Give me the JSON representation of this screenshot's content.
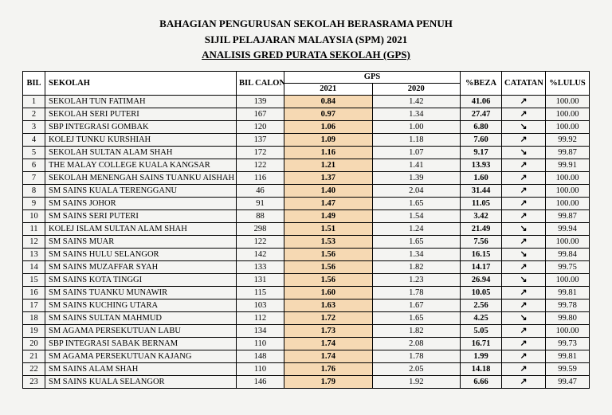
{
  "header": {
    "line1": "BAHAGIAN PENGURUSAN SEKOLAH BERASRAMA PENUH",
    "line2": "SIJIL PELAJARAN MALAYSIA (SPM) 2021",
    "line3": "ANALISIS GRED PURATA SEKOLAH (GPS)"
  },
  "columns": {
    "bil": "BIL",
    "sekolah": "SEKOLAH",
    "bil_calon": "BIL CALON",
    "gps": "GPS",
    "gps_2021": "2021",
    "gps_2020": "2020",
    "beza": "%BEZA",
    "catatan": "CATATAN",
    "lulus": "%LULUS"
  },
  "style": {
    "highlight_bg": "#f6d9b3",
    "border_color": "#000000",
    "page_bg": "#f4f4f2",
    "font_family": "Times New Roman",
    "header_fontsize_pt": 13,
    "body_fontsize_pt": 10.5
  },
  "rows": [
    {
      "bil": "1",
      "sekolah": "SEKOLAH TUN FATIMAH",
      "calon": "139",
      "g21": "0.84",
      "g20": "1.42",
      "beza": "41.06",
      "cat": "↗",
      "lulus": "100.00"
    },
    {
      "bil": "2",
      "sekolah": "SEKOLAH SERI PUTERI",
      "calon": "167",
      "g21": "0.97",
      "g20": "1.34",
      "beza": "27.47",
      "cat": "↗",
      "lulus": "100.00"
    },
    {
      "bil": "3",
      "sekolah": "SBP INTEGRASI GOMBAK",
      "calon": "120",
      "g21": "1.06",
      "g20": "1.00",
      "beza": "6.80",
      "cat": "↘",
      "lulus": "100.00"
    },
    {
      "bil": "4",
      "sekolah": "KOLEJ TUNKU KURSHIAH",
      "calon": "137",
      "g21": "1.09",
      "g20": "1.18",
      "beza": "7.60",
      "cat": "↗",
      "lulus": "99.92"
    },
    {
      "bil": "5",
      "sekolah": "SEKOLAH SULTAN ALAM SHAH",
      "calon": "172",
      "g21": "1.16",
      "g20": "1.07",
      "beza": "9.17",
      "cat": "↘",
      "lulus": "99.87"
    },
    {
      "bil": "6",
      "sekolah": "THE MALAY COLLEGE KUALA KANGSAR",
      "calon": "122",
      "g21": "1.21",
      "g20": "1.41",
      "beza": "13.93",
      "cat": "↗",
      "lulus": "99.91"
    },
    {
      "bil": "7",
      "sekolah": "SEKOLAH MENENGAH SAINS TUANKU AISHAH ROI",
      "calon": "116",
      "g21": "1.37",
      "g20": "1.39",
      "beza": "1.60",
      "cat": "↗",
      "lulus": "100.00"
    },
    {
      "bil": "8",
      "sekolah": "SM SAINS KUALA TERENGGANU",
      "calon": "46",
      "g21": "1.40",
      "g20": "2.04",
      "beza": "31.44",
      "cat": "↗",
      "lulus": "100.00"
    },
    {
      "bil": "9",
      "sekolah": "SM SAINS JOHOR",
      "calon": "91",
      "g21": "1.47",
      "g20": "1.65",
      "beza": "11.05",
      "cat": "↗",
      "lulus": "100.00"
    },
    {
      "bil": "10",
      "sekolah": "SM SAINS SERI PUTERI",
      "calon": "88",
      "g21": "1.49",
      "g20": "1.54",
      "beza": "3.42",
      "cat": "↗",
      "lulus": "99.87"
    },
    {
      "bil": "11",
      "sekolah": "KOLEJ ISLAM SULTAN ALAM SHAH",
      "calon": "298",
      "g21": "1.51",
      "g20": "1.24",
      "beza": "21.49",
      "cat": "↘",
      "lulus": "99.94"
    },
    {
      "bil": "12",
      "sekolah": "SM SAINS MUAR",
      "calon": "122",
      "g21": "1.53",
      "g20": "1.65",
      "beza": "7.56",
      "cat": "↗",
      "lulus": "100.00"
    },
    {
      "bil": "13",
      "sekolah": "SM SAINS HULU SELANGOR",
      "calon": "142",
      "g21": "1.56",
      "g20": "1.34",
      "beza": "16.15",
      "cat": "↘",
      "lulus": "99.84"
    },
    {
      "bil": "14",
      "sekolah": "SM SAINS MUZAFFAR SYAH",
      "calon": "133",
      "g21": "1.56",
      "g20": "1.82",
      "beza": "14.17",
      "cat": "↗",
      "lulus": "99.75"
    },
    {
      "bil": "15",
      "sekolah": "SM SAINS KOTA TINGGI",
      "calon": "131",
      "g21": "1.56",
      "g20": "1.23",
      "beza": "26.94",
      "cat": "↘",
      "lulus": "100.00"
    },
    {
      "bil": "16",
      "sekolah": "SM SAINS TUANKU MUNAWIR",
      "calon": "115",
      "g21": "1.60",
      "g20": "1.78",
      "beza": "10.05",
      "cat": "↗",
      "lulus": "99.81"
    },
    {
      "bil": "17",
      "sekolah": "SM SAINS KUCHING UTARA",
      "calon": "103",
      "g21": "1.63",
      "g20": "1.67",
      "beza": "2.56",
      "cat": "↗",
      "lulus": "99.78"
    },
    {
      "bil": "18",
      "sekolah": "SM SAINS SULTAN MAHMUD",
      "calon": "112",
      "g21": "1.72",
      "g20": "1.65",
      "beza": "4.25",
      "cat": "↘",
      "lulus": "99.80"
    },
    {
      "bil": "19",
      "sekolah": "SM AGAMA PERSEKUTUAN LABU",
      "calon": "134",
      "g21": "1.73",
      "g20": "1.82",
      "beza": "5.05",
      "cat": "↗",
      "lulus": "100.00"
    },
    {
      "bil": "20",
      "sekolah": "SBP INTEGRASI SABAK BERNAM",
      "calon": "110",
      "g21": "1.74",
      "g20": "2.08",
      "beza": "16.71",
      "cat": "↗",
      "lulus": "99.73"
    },
    {
      "bil": "21",
      "sekolah": "SM AGAMA PERSEKUTUAN KAJANG",
      "calon": "148",
      "g21": "1.74",
      "g20": "1.78",
      "beza": "1.99",
      "cat": "↗",
      "lulus": "99.81"
    },
    {
      "bil": "22",
      "sekolah": "SM SAINS ALAM SHAH",
      "calon": "110",
      "g21": "1.76",
      "g20": "2.05",
      "beza": "14.18",
      "cat": "↗",
      "lulus": "99.59"
    },
    {
      "bil": "23",
      "sekolah": "SM SAINS KUALA SELANGOR",
      "calon": "146",
      "g21": "1.79",
      "g20": "1.92",
      "beza": "6.66",
      "cat": "↗",
      "lulus": "99.47"
    }
  ]
}
